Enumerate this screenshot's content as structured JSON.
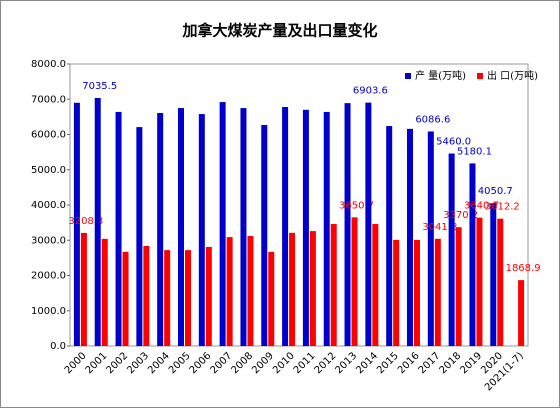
{
  "chart_data": {
    "type": "bar",
    "title": "加拿大煤炭产量及出口量变化",
    "categories": [
      "2000",
      "2001",
      "2002",
      "2003",
      "2004",
      "2005",
      "2006",
      "2007",
      "2008",
      "2009",
      "2010",
      "2011",
      "2012",
      "2013",
      "2014",
      "2015",
      "2016",
      "2017",
      "2018",
      "2019",
      "2020",
      "2021(1-7)"
    ],
    "series": [
      {
        "name": "产 量(万吨)",
        "color": "#0000cc",
        "values": [
          6900,
          7035.5,
          6640,
          6210,
          6610,
          6750,
          6580,
          6920,
          6750,
          6270,
          6780,
          6700,
          6640,
          6890,
          6903.6,
          6240,
          6160,
          6086.6,
          5460.0,
          5180.1,
          4050.7,
          null
        ],
        "value_labels": [
          null,
          "7035.5",
          null,
          null,
          null,
          null,
          null,
          null,
          null,
          null,
          null,
          null,
          null,
          null,
          "6903.6",
          null,
          null,
          "6086.6",
          "5460.0",
          "5180.1",
          "4050.7",
          null
        ]
      },
      {
        "name": "出 口(万吨)",
        "color": "#ff0000",
        "values": [
          3208.3,
          3040,
          2670,
          2840,
          2720,
          2720,
          2810,
          3090,
          3120,
          2670,
          3210,
          3260,
          3460,
          3650.7,
          3460,
          3010,
          3010,
          3041.8,
          3370.2,
          3640.7,
          3612.2,
          1868.9
        ],
        "value_labels": [
          "3208.3",
          null,
          null,
          null,
          null,
          null,
          null,
          null,
          null,
          null,
          null,
          null,
          null,
          "3650.7",
          null,
          null,
          null,
          "3041.8",
          "3370.2",
          "3640.7",
          "3612.2",
          "1868.9"
        ]
      }
    ],
    "ylim": [
      0,
      8000
    ],
    "yticks": [
      {
        "value": 0,
        "label": "0.0"
      },
      {
        "value": 1000,
        "label": "1000.0"
      },
      {
        "value": 2000,
        "label": "2000.0"
      },
      {
        "value": 3000,
        "label": "3000.0"
      },
      {
        "value": 4000,
        "label": "4000.0"
      },
      {
        "value": 5000,
        "label": "5000.0"
      },
      {
        "value": 6000,
        "label": "6000.0"
      },
      {
        "value": 7000,
        "label": "7000.0"
      },
      {
        "value": 8000,
        "label": "8000.0"
      }
    ],
    "grid": false,
    "legend": "top-right"
  }
}
